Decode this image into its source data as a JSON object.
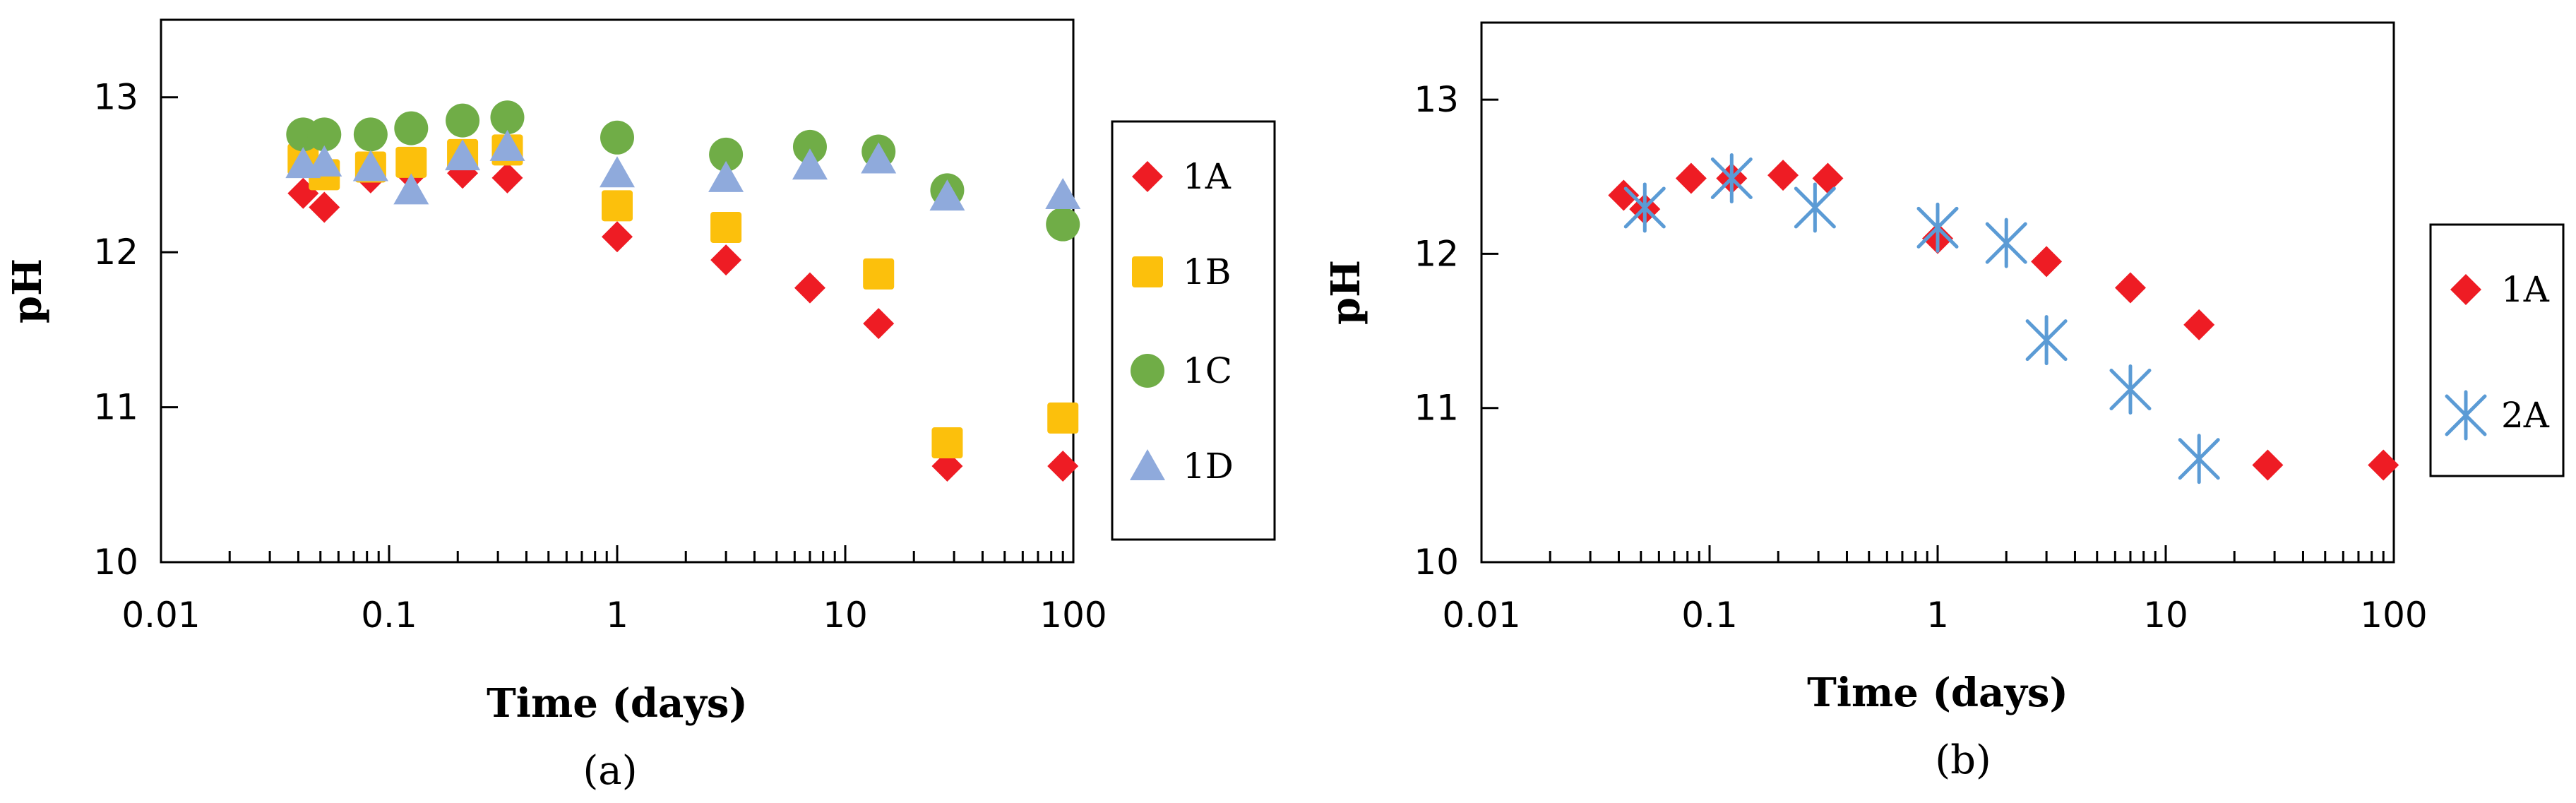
{
  "chart_data": [
    {
      "type": "scatter",
      "caption": "(a)",
      "xlabel": "Time (days)",
      "ylabel": "pH",
      "xscale": "log",
      "xlim": [
        0.01,
        100
      ],
      "ylim": [
        10,
        13.5
      ],
      "xticks": [
        0.01,
        0.1,
        1,
        10,
        100
      ],
      "xtick_labels": [
        "0.01",
        "0.1",
        "1",
        "10",
        "100"
      ],
      "yticks": [
        10,
        11,
        12,
        13
      ],
      "ytick_labels": [
        "10",
        "11",
        "12",
        "13"
      ],
      "grid": false,
      "legend_position": "right",
      "series": [
        {
          "name": "1A",
          "marker": "diamond",
          "color": "#ee1c24",
          "x": [
            0.042,
            0.052,
            0.083,
            0.125,
            0.21,
            0.33,
            1,
            3,
            7,
            14,
            28,
            90
          ],
          "y": [
            12.38,
            12.29,
            12.48,
            12.5,
            12.51,
            12.48,
            12.1,
            11.95,
            11.77,
            11.54,
            10.62,
            10.62
          ]
        },
        {
          "name": "1B",
          "marker": "square",
          "color": "#fcc00c",
          "x": [
            0.042,
            0.052,
            0.083,
            0.125,
            0.21,
            0.33,
            1,
            3,
            14,
            28,
            90
          ],
          "y": [
            12.6,
            12.5,
            12.55,
            12.58,
            12.63,
            12.66,
            12.3,
            12.16,
            11.86,
            10.77,
            10.93
          ]
        },
        {
          "name": "1C",
          "marker": "circle",
          "color": "#70ad47",
          "x": [
            0.042,
            0.052,
            0.083,
            0.125,
            0.21,
            0.33,
            1,
            3,
            7,
            14,
            28,
            90
          ],
          "y": [
            12.76,
            12.76,
            12.76,
            12.8,
            12.85,
            12.87,
            12.74,
            12.63,
            12.68,
            12.65,
            12.4,
            12.18
          ]
        },
        {
          "name": "1D",
          "marker": "triangle",
          "color": "#8faadc",
          "x": [
            0.042,
            0.052,
            0.083,
            0.125,
            0.21,
            0.33,
            1,
            3,
            7,
            14,
            28,
            90
          ],
          "y": [
            12.57,
            12.58,
            12.55,
            12.4,
            12.62,
            12.68,
            12.51,
            12.48,
            12.56,
            12.6,
            12.36,
            12.37
          ]
        }
      ]
    },
    {
      "type": "scatter",
      "caption": "(b)",
      "xlabel": "Time (days)",
      "ylabel": "pH",
      "xscale": "log",
      "xlim": [
        0.01,
        100
      ],
      "ylim": [
        10,
        13.5
      ],
      "xticks": [
        0.01,
        0.1,
        1,
        10,
        100
      ],
      "xtick_labels": [
        "0.01",
        "0.1",
        "1",
        "10",
        "100"
      ],
      "yticks": [
        10,
        11,
        12,
        13
      ],
      "ytick_labels": [
        "10",
        "11",
        "12",
        "13"
      ],
      "grid": false,
      "legend_position": "right",
      "series": [
        {
          "name": "1A",
          "marker": "diamond",
          "color": "#ee1c24",
          "x": [
            0.042,
            0.052,
            0.083,
            0.125,
            0.21,
            0.33,
            1,
            3,
            7,
            14,
            28,
            90
          ],
          "y": [
            12.38,
            12.29,
            12.49,
            12.49,
            12.51,
            12.49,
            12.1,
            11.95,
            11.78,
            11.54,
            10.63,
            10.63
          ]
        },
        {
          "name": "2A",
          "marker": "asterisk",
          "color": "#5b9bd5",
          "x": [
            0.052,
            0.125,
            0.29,
            1,
            2,
            3,
            7,
            14
          ],
          "y": [
            12.3,
            12.49,
            12.3,
            12.17,
            12.07,
            11.44,
            11.12,
            10.67
          ]
        }
      ]
    }
  ]
}
